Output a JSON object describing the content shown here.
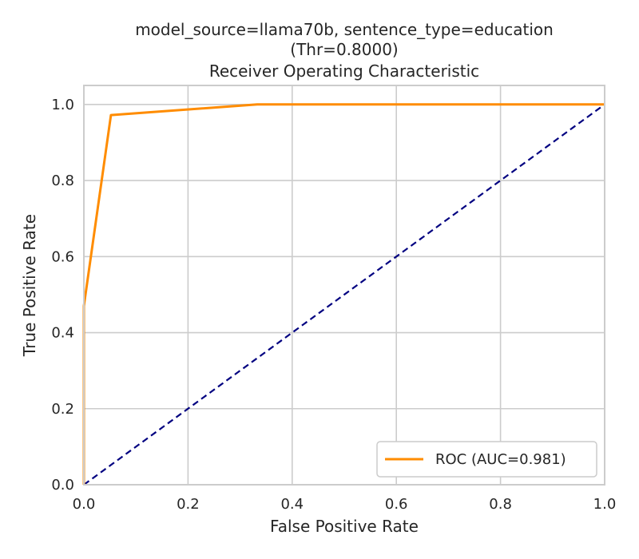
{
  "chart_data": {
    "type": "line",
    "title": "model_source=llama70b, sentence_type=education",
    "subtitle_lines": [
      "(Thr=0.8000)",
      "Receiver Operating Characteristic"
    ],
    "xlabel": "False Positive Rate",
    "ylabel": "True Positive Rate",
    "xlim": [
      0.0,
      1.0
    ],
    "ylim": [
      0.0,
      1.05
    ],
    "x_ticks": [
      0.0,
      0.2,
      0.4,
      0.6,
      0.8,
      1.0
    ],
    "y_ticks": [
      0.0,
      0.2,
      0.4,
      0.6,
      0.8,
      1.0
    ],
    "x_tick_labels": [
      "0.0",
      "0.2",
      "0.4",
      "0.6",
      "0.8",
      "1.0"
    ],
    "y_tick_labels": [
      "0.0",
      "0.2",
      "0.4",
      "0.6",
      "0.8",
      "1.0"
    ],
    "grid": true,
    "legend_position": "lower-right",
    "series": [
      {
        "name": "ROC (AUC=0.981)",
        "color": "#ff8c00",
        "style": "solid",
        "x": [
          0.0,
          0.0,
          0.052,
          0.333,
          1.0
        ],
        "y": [
          0.0,
          0.47,
          0.972,
          1.0,
          1.0
        ]
      },
      {
        "color": "#000080",
        "style": "dashed",
        "x": [
          0.0,
          1.0
        ],
        "y": [
          0.0,
          1.0
        ]
      }
    ]
  }
}
